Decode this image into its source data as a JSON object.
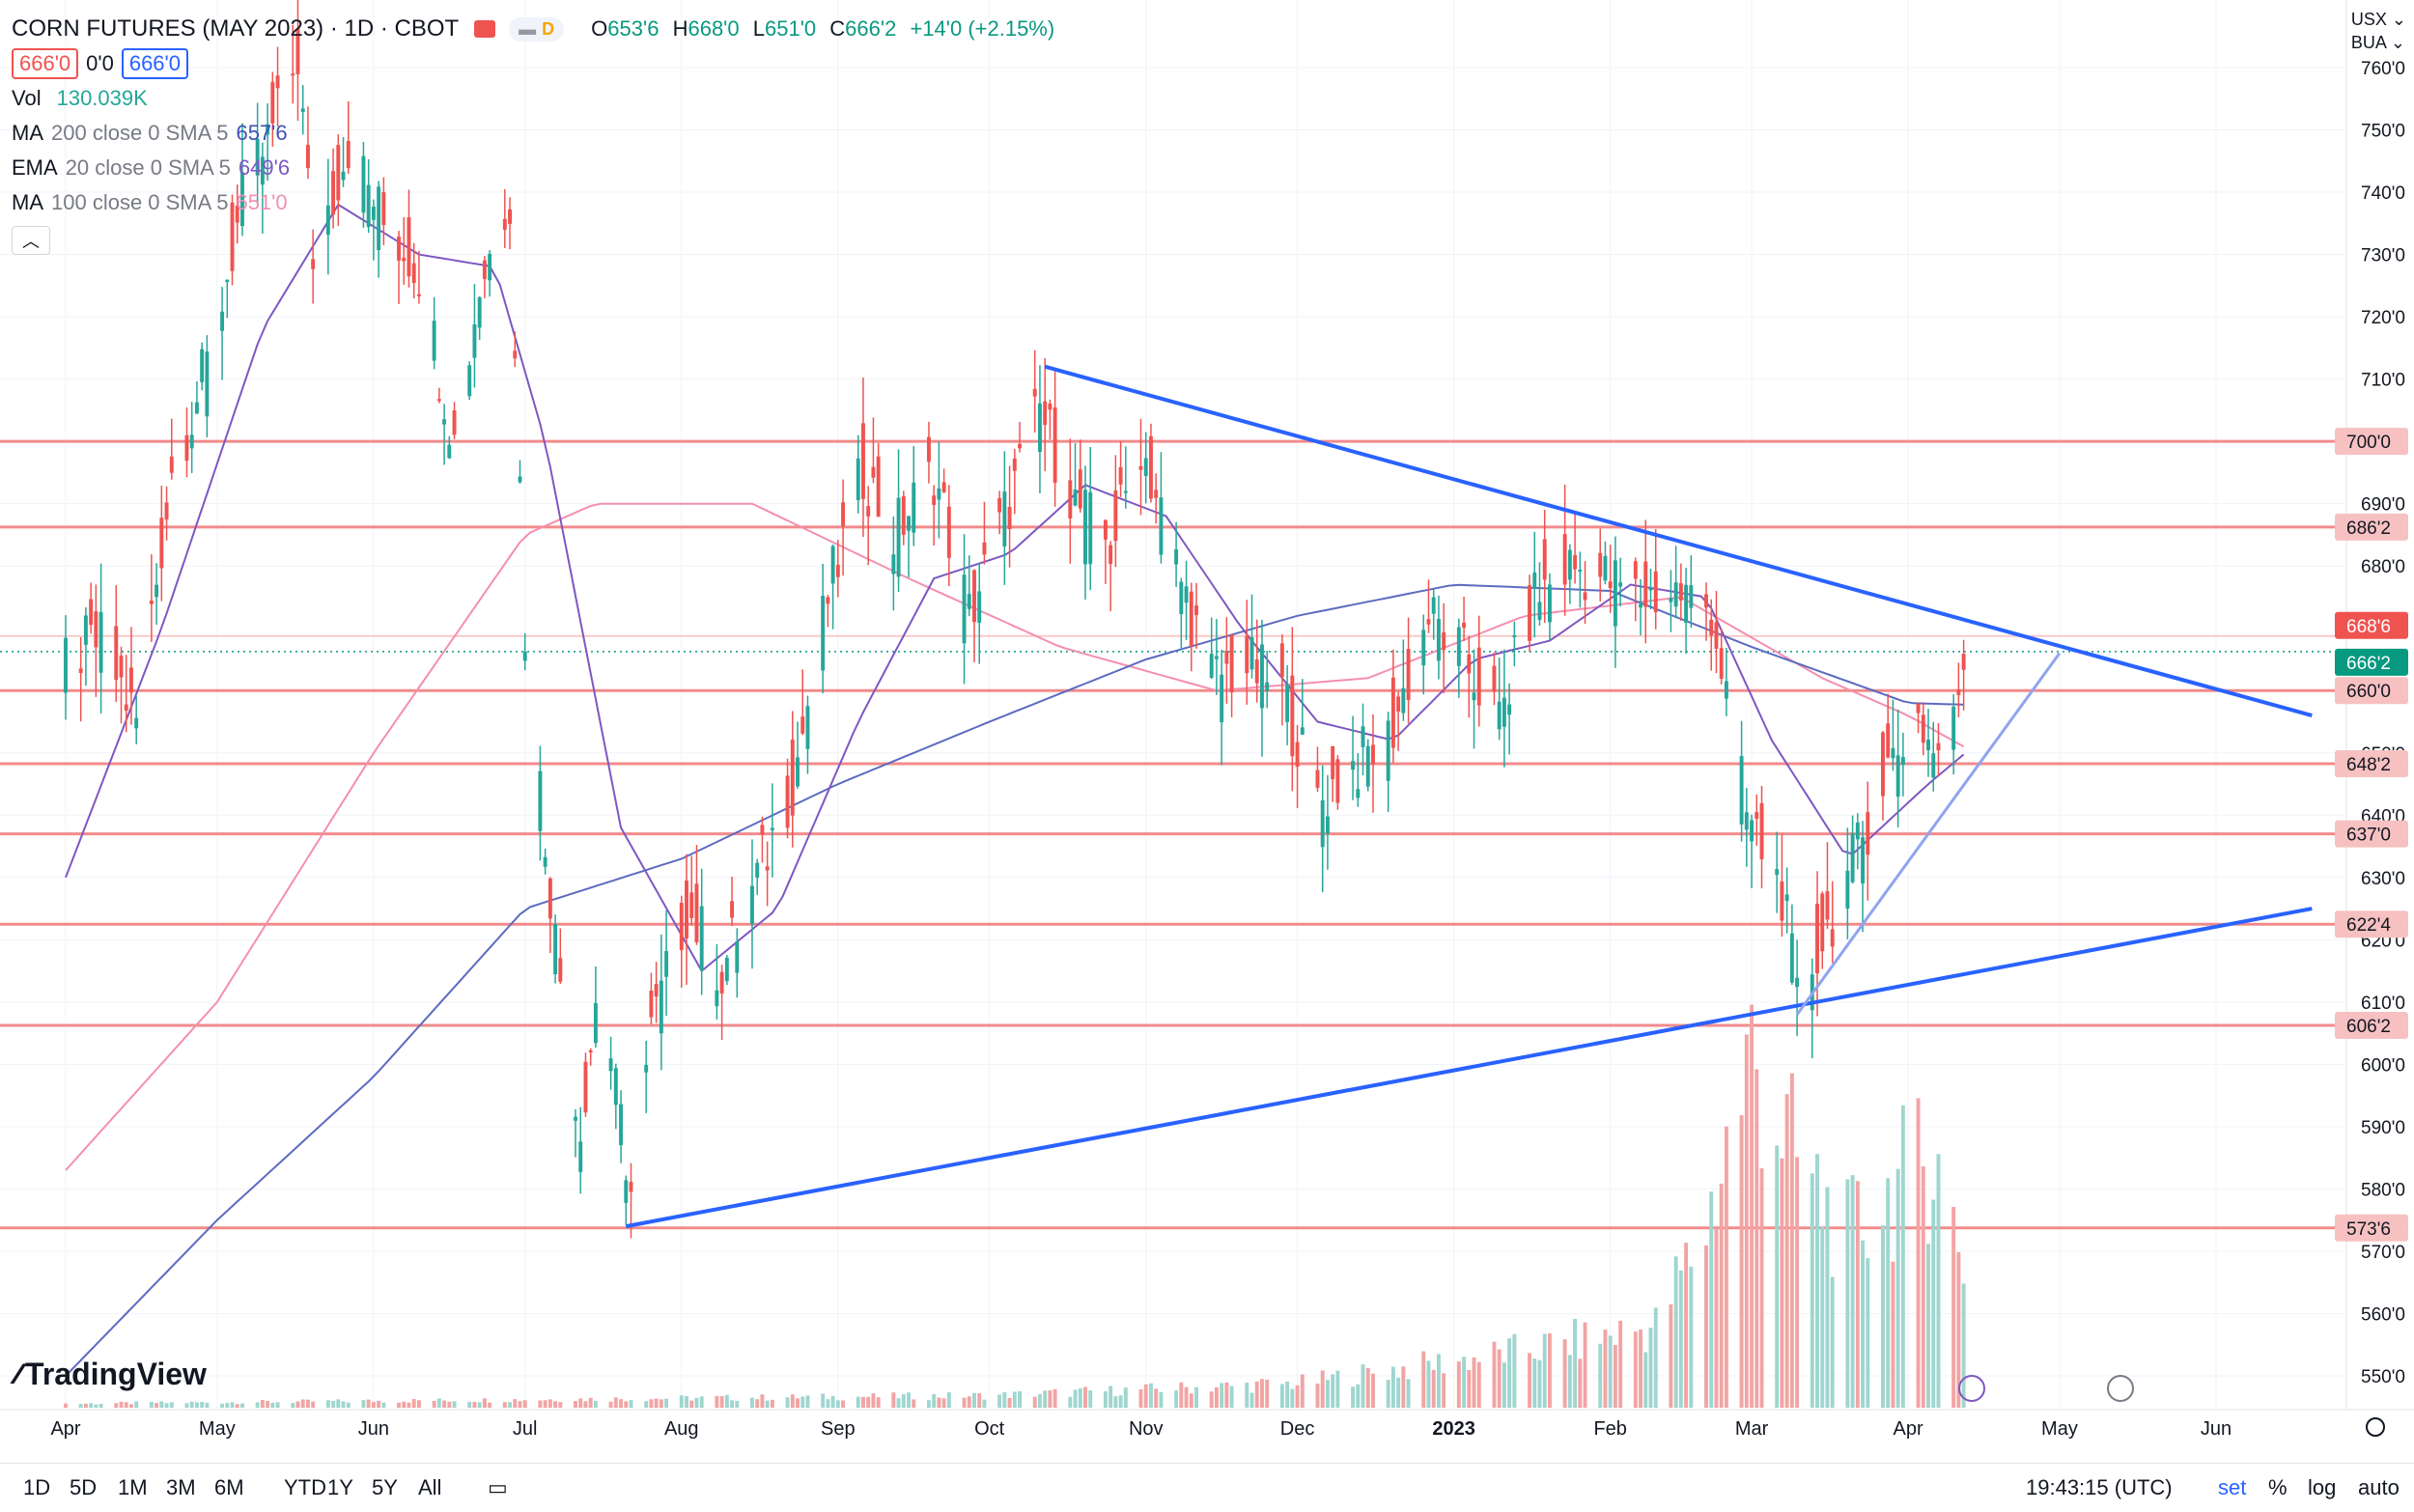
{
  "header": {
    "title": "CORN FUTURES (MAY 2023) · 1D · CBOT",
    "badge_d": "D",
    "ohlc": {
      "o_label": "O",
      "o": "653'6",
      "h_label": "H",
      "h": "668'0",
      "l_label": "L",
      "l": "651'0",
      "c_label": "C",
      "c": "666'2",
      "chg": "+14'0 (+2.15%)"
    },
    "bid": "666'0",
    "spread": "0'0",
    "ask": "666'0",
    "currency": "USX",
    "exchange": "BUA"
  },
  "indicators": [
    {
      "name": "Vol",
      "params": "",
      "value": "130.039K",
      "color": "#26a69a"
    },
    {
      "name": "MA",
      "params": "200 close 0 SMA 5",
      "value": "657'6",
      "color": "#3f51b5"
    },
    {
      "name": "EMA",
      "params": "20 close 0 SMA 5",
      "value": "649'6",
      "color": "#7e57c2"
    },
    {
      "name": "MA",
      "params": "100 close 0 SMA 5",
      "value": "651'0",
      "color": "#f48fb1"
    }
  ],
  "toolbar": {
    "ranges": [
      "1D",
      "5D",
      "1M",
      "3M",
      "6M",
      "YTD",
      "1Y",
      "5Y",
      "All"
    ],
    "time": "19:43:15 (UTC)",
    "set": "set",
    "pct": "%",
    "log": "log",
    "auto": "auto"
  },
  "logo": "TradingView",
  "colors": {
    "up": "#26a69a",
    "down": "#ef5350",
    "trend": "#2962ff",
    "trend_light": "#90a4f0",
    "level": "#f28b8b"
  },
  "chart_data": {
    "type": "candlestick",
    "y_axis_ticks": [
      "760'0",
      "750'0",
      "740'0",
      "730'0",
      "720'0",
      "710'0",
      "690'0",
      "680'0",
      "650'0",
      "640'0",
      "630'0",
      "620'0",
      "610'0",
      "600'0",
      "590'0",
      "580'0",
      "570'0",
      "560'0",
      "550'0"
    ],
    "y_tick_values": [
      760,
      750,
      740,
      730,
      720,
      710,
      690,
      680,
      650,
      640,
      630,
      620,
      610,
      600,
      590,
      580,
      570,
      560,
      550
    ],
    "ylim": [
      546,
      763
    ],
    "x_axis_labels": [
      "Apr",
      "May",
      "Jun",
      "Jul",
      "Aug",
      "Sep",
      "Oct",
      "Nov",
      "Dec",
      "2023",
      "Feb",
      "Mar",
      "Apr",
      "May",
      "Jun"
    ],
    "x_axis_dates": [
      "2022-04-01",
      "2022-05-01",
      "2022-06-01",
      "2022-07-01",
      "2022-08-01",
      "2022-09-01",
      "2022-10-01",
      "2022-11-01",
      "2022-12-01",
      "2023-01-01",
      "2023-02-01",
      "2023-03-01",
      "2023-04-01",
      "2023-05-01",
      "2023-06-01"
    ],
    "horizontal_levels": [
      {
        "label": "700'0",
        "value": 700.0
      },
      {
        "label": "686'2",
        "value": 686.25
      },
      {
        "label": "660'0",
        "value": 660.0
      },
      {
        "label": "648'2",
        "value": 648.25
      },
      {
        "label": "637'0",
        "value": 637.0
      },
      {
        "label": "622'4",
        "value": 622.5
      },
      {
        "label": "606'2",
        "value": 606.25
      },
      {
        "label": "573'6",
        "value": 573.75
      }
    ],
    "price_labels": [
      {
        "label": "668'6",
        "value": 668.75,
        "color": "#ef5350"
      },
      {
        "label": "666'2",
        "value": 666.25,
        "color": "#089981"
      }
    ],
    "trendlines": [
      {
        "name": "upper",
        "from": {
          "date": "2022-10-12",
          "value": 712
        },
        "to": {
          "date": "2023-06-20",
          "value": 656
        }
      },
      {
        "name": "lower",
        "from": {
          "date": "2022-07-21",
          "value": 574
        },
        "to": {
          "date": "2023-06-20",
          "value": 625
        }
      },
      {
        "name": "short-up",
        "from": {
          "date": "2023-03-10",
          "value": 608
        },
        "to": {
          "date": "2023-05-01",
          "value": 666
        }
      }
    ],
    "closes": [
      {
        "d": "2022-04-01",
        "c": 665
      },
      {
        "d": "2022-04-08",
        "c": 668
      },
      {
        "d": "2022-04-15",
        "c": 655
      },
      {
        "d": "2022-04-22",
        "c": 695
      },
      {
        "d": "2022-04-29",
        "c": 712
      },
      {
        "d": "2022-05-06",
        "c": 738
      },
      {
        "d": "2022-05-13",
        "c": 752
      },
      {
        "d": "2022-05-17",
        "c": 762
      },
      {
        "d": "2022-05-20",
        "c": 730
      },
      {
        "d": "2022-05-27",
        "c": 748
      },
      {
        "d": "2022-06-03",
        "c": 735
      },
      {
        "d": "2022-06-10",
        "c": 728
      },
      {
        "d": "2022-06-17",
        "c": 700
      },
      {
        "d": "2022-06-22",
        "c": 725
      },
      {
        "d": "2022-06-28",
        "c": 740
      },
      {
        "d": "2022-07-01",
        "c": 670
      },
      {
        "d": "2022-07-07",
        "c": 620
      },
      {
        "d": "2022-07-12",
        "c": 590
      },
      {
        "d": "2022-07-15",
        "c": 610
      },
      {
        "d": "2022-07-19",
        "c": 600
      },
      {
        "d": "2022-07-21",
        "c": 578
      },
      {
        "d": "2022-07-26",
        "c": 605
      },
      {
        "d": "2022-08-02",
        "c": 625
      },
      {
        "d": "2022-08-09",
        "c": 615
      },
      {
        "d": "2022-08-16",
        "c": 630
      },
      {
        "d": "2022-08-23",
        "c": 645
      },
      {
        "d": "2022-08-30",
        "c": 675
      },
      {
        "d": "2022-09-06",
        "c": 695
      },
      {
        "d": "2022-09-12",
        "c": 685
      },
      {
        "d": "2022-09-20",
        "c": 695
      },
      {
        "d": "2022-09-27",
        "c": 672
      },
      {
        "d": "2022-10-04",
        "c": 688
      },
      {
        "d": "2022-10-11",
        "c": 705
      },
      {
        "d": "2022-10-18",
        "c": 690
      },
      {
        "d": "2022-10-25",
        "c": 683
      },
      {
        "d": "2022-10-31",
        "c": 700
      },
      {
        "d": "2022-11-07",
        "c": 680
      },
      {
        "d": "2022-11-14",
        "c": 662
      },
      {
        "d": "2022-11-21",
        "c": 664
      },
      {
        "d": "2022-11-28",
        "c": 660
      },
      {
        "d": "2022-12-05",
        "c": 642
      },
      {
        "d": "2022-12-12",
        "c": 648
      },
      {
        "d": "2022-12-19",
        "c": 652
      },
      {
        "d": "2022-12-27",
        "c": 672
      },
      {
        "d": "2023-01-03",
        "c": 665
      },
      {
        "d": "2023-01-10",
        "c": 655
      },
      {
        "d": "2023-01-17",
        "c": 675
      },
      {
        "d": "2023-01-24",
        "c": 680
      },
      {
        "d": "2023-01-31",
        "c": 678
      },
      {
        "d": "2023-02-07",
        "c": 675
      },
      {
        "d": "2023-02-14",
        "c": 676
      },
      {
        "d": "2023-02-21",
        "c": 673
      },
      {
        "d": "2023-02-28",
        "c": 640
      },
      {
        "d": "2023-03-07",
        "c": 628
      },
      {
        "d": "2023-03-10",
        "c": 610
      },
      {
        "d": "2023-03-14",
        "c": 618
      },
      {
        "d": "2023-03-21",
        "c": 632
      },
      {
        "d": "2023-03-28",
        "c": 648
      },
      {
        "d": "2023-04-03",
        "c": 656
      },
      {
        "d": "2023-04-06",
        "c": 650
      },
      {
        "d": "2023-04-10",
        "c": 654
      },
      {
        "d": "2023-04-12",
        "c": 666
      }
    ],
    "ma200": [
      {
        "d": "2022-04-01",
        "v": 550
      },
      {
        "d": "2022-05-01",
        "v": 575
      },
      {
        "d": "2022-06-01",
        "v": 598
      },
      {
        "d": "2022-07-01",
        "v": 625
      },
      {
        "d": "2022-08-01",
        "v": 633
      },
      {
        "d": "2022-09-01",
        "v": 645
      },
      {
        "d": "2022-10-01",
        "v": 655
      },
      {
        "d": "2022-11-01",
        "v": 665
      },
      {
        "d": "2022-12-01",
        "v": 672
      },
      {
        "d": "2023-01-01",
        "v": 677
      },
      {
        "d": "2023-02-01",
        "v": 676
      },
      {
        "d": "2023-03-01",
        "v": 667
      },
      {
        "d": "2023-04-01",
        "v": 658
      },
      {
        "d": "2023-04-12",
        "v": 657.75
      }
    ],
    "ema20": [
      {
        "d": "2022-04-01",
        "v": 630
      },
      {
        "d": "2022-04-20",
        "v": 670
      },
      {
        "d": "2022-05-10",
        "v": 718
      },
      {
        "d": "2022-05-25",
        "v": 738
      },
      {
        "d": "2022-06-10",
        "v": 730
      },
      {
        "d": "2022-06-25",
        "v": 728
      },
      {
        "d": "2022-07-05",
        "v": 700
      },
      {
        "d": "2022-07-20",
        "v": 638
      },
      {
        "d": "2022-08-05",
        "v": 615
      },
      {
        "d": "2022-08-20",
        "v": 625
      },
      {
        "d": "2022-09-05",
        "v": 655
      },
      {
        "d": "2022-09-20",
        "v": 678
      },
      {
        "d": "2022-10-05",
        "v": 682
      },
      {
        "d": "2022-10-20",
        "v": 693
      },
      {
        "d": "2022-11-05",
        "v": 688
      },
      {
        "d": "2022-11-20",
        "v": 670
      },
      {
        "d": "2022-12-05",
        "v": 655
      },
      {
        "d": "2022-12-20",
        "v": 652
      },
      {
        "d": "2023-01-05",
        "v": 665
      },
      {
        "d": "2023-01-20",
        "v": 668
      },
      {
        "d": "2023-02-05",
        "v": 677
      },
      {
        "d": "2023-02-20",
        "v": 675
      },
      {
        "d": "2023-03-05",
        "v": 652
      },
      {
        "d": "2023-03-20",
        "v": 633
      },
      {
        "d": "2023-04-05",
        "v": 645
      },
      {
        "d": "2023-04-12",
        "v": 649.75
      }
    ],
    "ma100": [
      {
        "d": "2022-04-01",
        "v": 583
      },
      {
        "d": "2022-05-01",
        "v": 610
      },
      {
        "d": "2022-06-01",
        "v": 650
      },
      {
        "d": "2022-07-01",
        "v": 685
      },
      {
        "d": "2022-07-15",
        "v": 690
      },
      {
        "d": "2022-08-15",
        "v": 690
      },
      {
        "d": "2022-09-15",
        "v": 678
      },
      {
        "d": "2022-10-15",
        "v": 667
      },
      {
        "d": "2022-11-15",
        "v": 660
      },
      {
        "d": "2022-12-15",
        "v": 662
      },
      {
        "d": "2023-01-15",
        "v": 672
      },
      {
        "d": "2023-02-15",
        "v": 675
      },
      {
        "d": "2023-03-15",
        "v": 662
      },
      {
        "d": "2023-04-01",
        "v": 656
      },
      {
        "d": "2023-04-12",
        "v": 651
      }
    ],
    "volume_relative": [
      {
        "d": "2022-04-01",
        "v": 0.01
      },
      {
        "d": "2022-07-01",
        "v": 0.02
      },
      {
        "d": "2022-10-01",
        "v": 0.03
      },
      {
        "d": "2022-12-01",
        "v": 0.06
      },
      {
        "d": "2023-01-15",
        "v": 0.14
      },
      {
        "d": "2023-02-10",
        "v": 0.2
      },
      {
        "d": "2023-02-20",
        "v": 0.45
      },
      {
        "d": "2023-03-01",
        "v": 0.87
      },
      {
        "d": "2023-03-10",
        "v": 0.6
      },
      {
        "d": "2023-03-20",
        "v": 0.42
      },
      {
        "d": "2023-03-30",
        "v": 0.55
      },
      {
        "d": "2023-04-06",
        "v": 0.62
      },
      {
        "d": "2023-04-12",
        "v": 0.37
      }
    ]
  }
}
